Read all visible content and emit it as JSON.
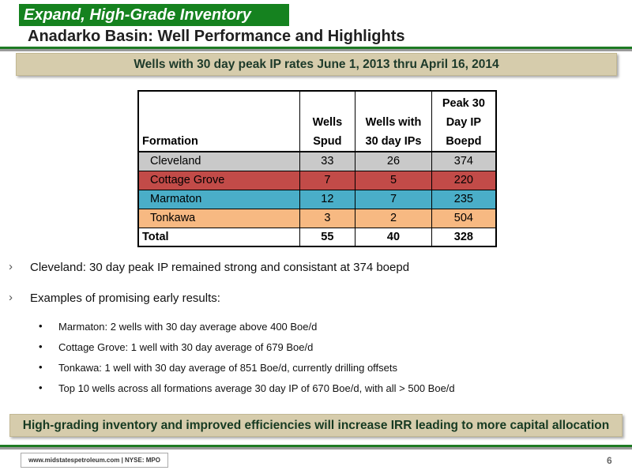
{
  "header": {
    "tag": "Expand, High-Grade Inventory",
    "title": "Anadarko Basin: Well Performance and Highlights"
  },
  "banner_top": "Wells with 30 day peak IP rates June 1, 2013 thru April 16, 2014",
  "table": {
    "headers": {
      "formation": "Formation",
      "wells_spud": [
        "Wells",
        "Spud"
      ],
      "wells_ip": [
        "Wells with",
        "30 day IPs"
      ],
      "peak": [
        "Peak 30",
        "Day IP",
        "Boepd"
      ]
    },
    "rows": [
      {
        "formation": "Cleveland",
        "spud": "33",
        "ips": "26",
        "peak": "374",
        "color": "#c9c9c9"
      },
      {
        "formation": "Cottage Grove",
        "spud": "7",
        "ips": "5",
        "peak": "220",
        "color": "#c24b48"
      },
      {
        "formation": "Marmaton",
        "spud": "12",
        "ips": "7",
        "peak": "235",
        "color": "#4aaec8"
      },
      {
        "formation": "Tonkawa",
        "spud": "3",
        "ips": "2",
        "peak": "504",
        "color": "#f7b982"
      }
    ],
    "total": {
      "formation": "Total",
      "spud": "55",
      "ips": "40",
      "peak": "328"
    }
  },
  "bullets": [
    "Cleveland: 30 day peak IP remained strong and consistant at 374 boepd",
    "Examples of promising early results:"
  ],
  "bullet_marker": "›",
  "sub_marker": "•",
  "sub_bullets": [
    "Marmaton:  2 wells with 30 day average above 400 Boe/d",
    "Cottage Grove: 1 well with 30 day average of 679 Boe/d",
    "Tonkawa: 1 well with 30 day average of 851 Boe/d, currently drilling offsets",
    "Top 10 wells across all formations average 30 day IP of 670 Boe/d, with all > 500 Boe/d"
  ],
  "banner_bottom": "High-grading inventory and improved efficiencies will increase IRR leading to more capital allocation",
  "footer": {
    "site": "www.midstatespetroleum.com | NYSE: MPO",
    "page": "6"
  }
}
